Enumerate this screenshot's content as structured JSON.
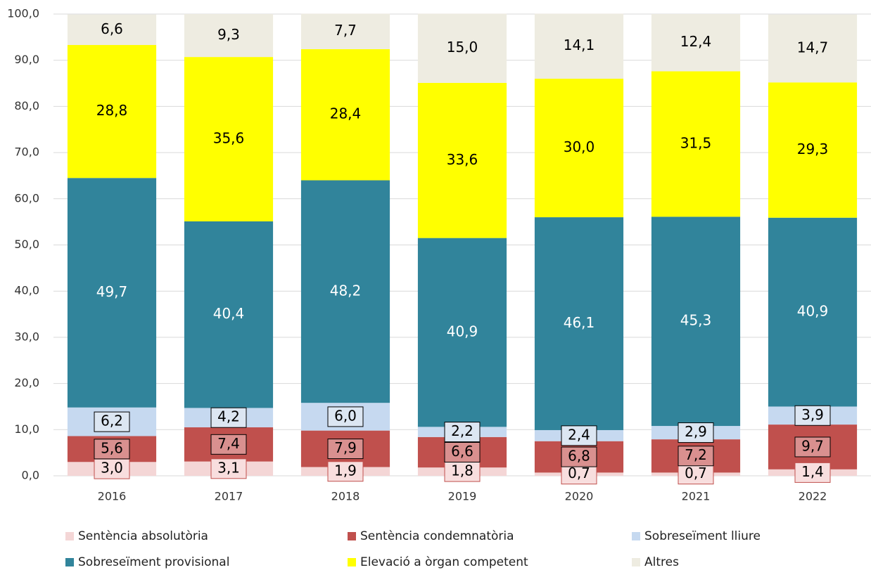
{
  "chart_data": {
    "type": "stacked_bar",
    "categories": [
      "2016",
      "2017",
      "2018",
      "2019",
      "2020",
      "2021",
      "2022"
    ],
    "series": [
      {
        "name": "Sentència absolutòria",
        "color": "#f4d6d6",
        "values": [
          3.0,
          3.1,
          1.9,
          1.8,
          0.7,
          0.7,
          1.4
        ],
        "value_labels": [
          "3,0",
          "3,1",
          "1,9",
          "1,8",
          "0,7",
          "0,7",
          "1,4"
        ]
      },
      {
        "name": "Sentència condemnatòria",
        "color": "#c0504d",
        "values": [
          5.6,
          7.4,
          7.9,
          6.6,
          6.8,
          7.2,
          9.7
        ],
        "value_labels": [
          "5,6",
          "7,4",
          "7,9",
          "6,6",
          "6,8",
          "7,2",
          "9,7"
        ]
      },
      {
        "name": "Sobreseïment lliure",
        "color": "#c6d9f0",
        "values": [
          6.2,
          4.2,
          6.0,
          2.2,
          2.4,
          2.9,
          3.9
        ],
        "value_labels": [
          "6,2",
          "4,2",
          "6,0",
          "2,2",
          "2,4",
          "2,9",
          "3,9"
        ]
      },
      {
        "name": "Sobreseïment provisional",
        "color": "#31849b",
        "values": [
          49.7,
          40.4,
          48.2,
          40.9,
          46.1,
          45.3,
          40.9
        ],
        "value_labels": [
          "49,7",
          "40,4",
          "48,2",
          "40,9",
          "46,1",
          "45,3",
          "40,9"
        ]
      },
      {
        "name": "Elevació a òrgan competent",
        "color": "#ffff00",
        "values": [
          28.8,
          35.6,
          28.4,
          33.6,
          30.0,
          31.5,
          29.3
        ],
        "value_labels": [
          "28,8",
          "35,6",
          "28,4",
          "33,6",
          "30,0",
          "31,5",
          "29,3"
        ]
      },
      {
        "name": "Altres",
        "color": "#eeece1",
        "values": [
          6.6,
          9.3,
          7.7,
          15.0,
          14.1,
          12.4,
          14.7
        ],
        "value_labels": [
          "6,6",
          "9,3",
          "7,7",
          "15,0",
          "14,1",
          "12,4",
          "14,7"
        ]
      }
    ],
    "ylim": [
      0,
      100
    ],
    "yticks": [
      {
        "value": 0,
        "label": "0,0"
      },
      {
        "value": 10,
        "label": "10,0"
      },
      {
        "value": 20,
        "label": "20,0"
      },
      {
        "value": 30,
        "label": "30,0"
      },
      {
        "value": 40,
        "label": "40,0"
      },
      {
        "value": 50,
        "label": "50,0"
      },
      {
        "value": 60,
        "label": "60,0"
      },
      {
        "value": 70,
        "label": "70,0"
      },
      {
        "value": 80,
        "label": "80,0"
      },
      {
        "value": 90,
        "label": "90,0"
      },
      {
        "value": 100,
        "label": "100,0"
      }
    ],
    "grid": true,
    "legend": "bottom"
  }
}
